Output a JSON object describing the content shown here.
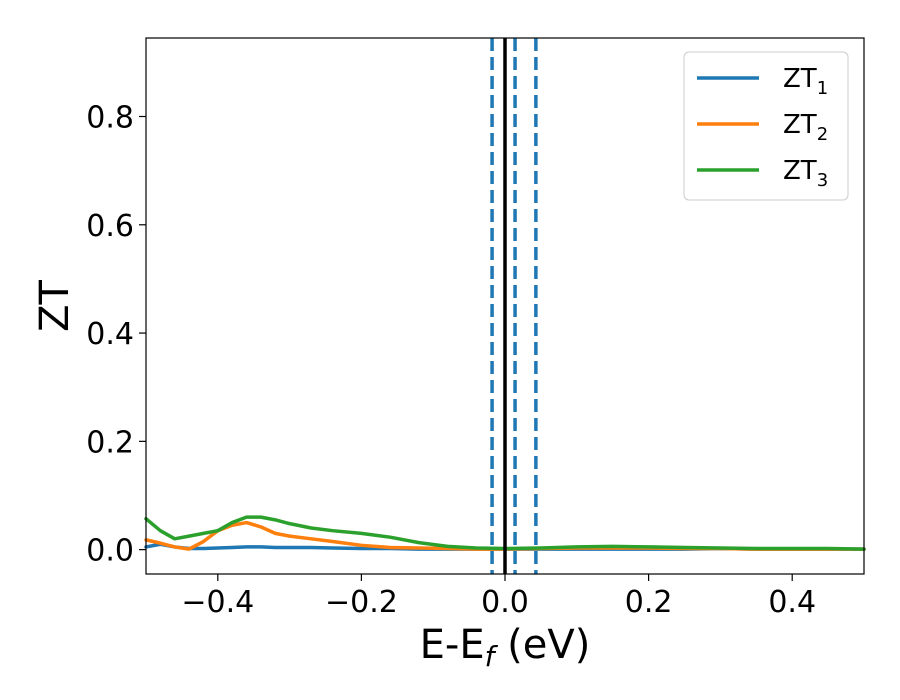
{
  "chart_data": {
    "type": "line",
    "title": "",
    "xlabel": "E-E",
    "xlabel_sub": "f",
    "xlabel_unit": " (eV)",
    "ylabel": "ZT",
    "xlim": [
      -0.5,
      0.5
    ],
    "ylim": [
      -0.045,
      0.945
    ],
    "xticks": [
      -0.4,
      -0.2,
      0.0,
      0.2,
      0.4
    ],
    "xtick_labels": [
      "−0.4",
      "−0.2",
      "0.0",
      "0.2",
      "0.4"
    ],
    "yticks": [
      0.0,
      0.2,
      0.4,
      0.6,
      0.8
    ],
    "ytick_labels": [
      "0.0",
      "0.2",
      "0.4",
      "0.6",
      "0.8"
    ],
    "grid": false,
    "legend_position": "top-right",
    "series": [
      {
        "name": "ZT",
        "name_sub": "1",
        "color": "#1f77b4",
        "x": [
          -0.5,
          -0.48,
          -0.46,
          -0.44,
          -0.42,
          -0.4,
          -0.38,
          -0.36,
          -0.34,
          -0.32,
          -0.3,
          -0.27,
          -0.24,
          -0.2,
          -0.16,
          -0.12,
          -0.08,
          -0.04,
          0.0,
          0.05,
          0.1,
          0.15,
          0.2,
          0.25,
          0.3,
          0.35,
          0.4,
          0.45,
          0.5
        ],
        "y": [
          0.005,
          0.01,
          0.005,
          0.002,
          0.002,
          0.003,
          0.004,
          0.005,
          0.005,
          0.004,
          0.004,
          0.004,
          0.003,
          0.002,
          0.002,
          0.001,
          0.001,
          0.001,
          0.001,
          0.001,
          0.001,
          0.001,
          0.001,
          0.001,
          0.002,
          0.001,
          0.001,
          0.001,
          0.001
        ]
      },
      {
        "name": "ZT",
        "name_sub": "2",
        "color": "#ff7f0e",
        "x": [
          -0.5,
          -0.48,
          -0.46,
          -0.44,
          -0.42,
          -0.4,
          -0.38,
          -0.36,
          -0.34,
          -0.32,
          -0.3,
          -0.27,
          -0.24,
          -0.2,
          -0.16,
          -0.12,
          -0.08,
          -0.04,
          0.0,
          0.05,
          0.1,
          0.15,
          0.2,
          0.25,
          0.3,
          0.35,
          0.4,
          0.45,
          0.5
        ],
        "y": [
          0.018,
          0.012,
          0.005,
          0.001,
          0.015,
          0.035,
          0.045,
          0.05,
          0.042,
          0.03,
          0.025,
          0.02,
          0.015,
          0.008,
          0.004,
          0.003,
          0.002,
          0.001,
          0.001,
          0.002,
          0.003,
          0.003,
          0.003,
          0.002,
          0.002,
          0.001,
          0.001,
          0.001,
          0.001
        ]
      },
      {
        "name": "ZT",
        "name_sub": "3",
        "color": "#2ca02c",
        "x": [
          -0.5,
          -0.48,
          -0.46,
          -0.44,
          -0.42,
          -0.4,
          -0.38,
          -0.36,
          -0.34,
          -0.32,
          -0.3,
          -0.27,
          -0.24,
          -0.2,
          -0.16,
          -0.12,
          -0.08,
          -0.04,
          0.0,
          0.05,
          0.1,
          0.15,
          0.2,
          0.25,
          0.3,
          0.35,
          0.4,
          0.45,
          0.5
        ],
        "y": [
          0.057,
          0.035,
          0.02,
          0.025,
          0.03,
          0.035,
          0.05,
          0.06,
          0.06,
          0.055,
          0.048,
          0.04,
          0.035,
          0.03,
          0.023,
          0.013,
          0.006,
          0.003,
          0.002,
          0.003,
          0.005,
          0.006,
          0.005,
          0.004,
          0.003,
          0.002,
          0.002,
          0.002,
          0.001
        ]
      }
    ],
    "vlines": [
      {
        "x": 0.0,
        "color": "#000000",
        "style": "solid"
      },
      {
        "x": -0.018,
        "color": "#1f77b4",
        "style": "dashed"
      },
      {
        "x": 0.014,
        "color": "#1f77b4",
        "style": "dashed"
      },
      {
        "x": 0.043,
        "color": "#1f77b4",
        "style": "dashed"
      }
    ]
  }
}
